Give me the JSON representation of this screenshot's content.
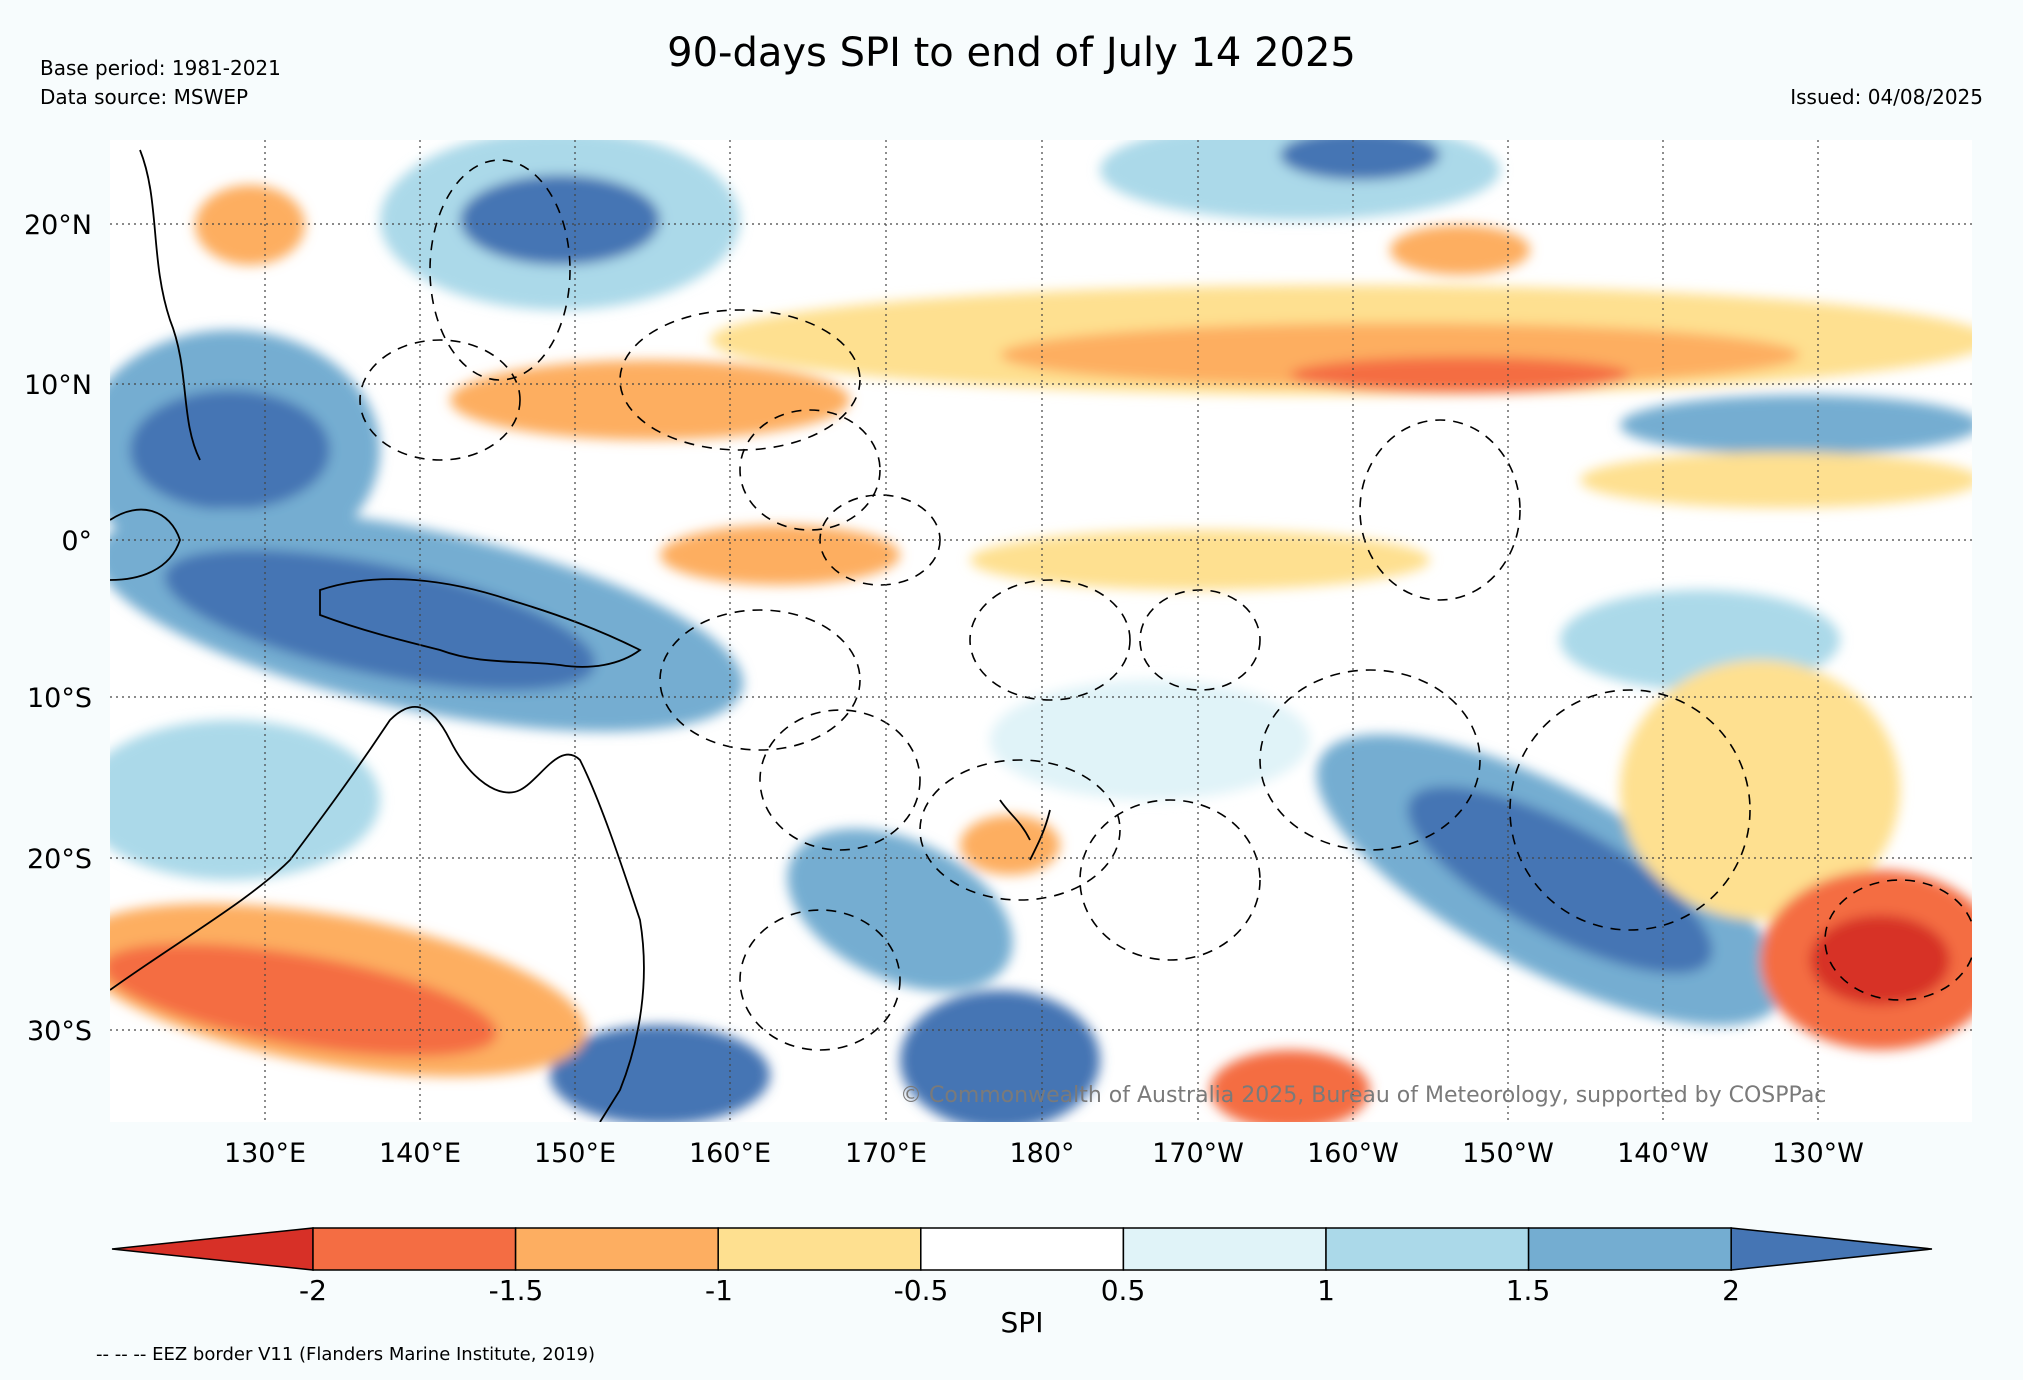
{
  "title": "90-days SPI to end of July 14 2025",
  "base_period": "Base period: 1981-2021",
  "data_source": "Data source: MSWEP",
  "issued": "Issued: 04/08/2025",
  "credit": "© Commonwealth of Australia 2025, Bureau of Meteorology, supported by COSPPac",
  "footnote": "-- -- -- EEZ border V11 (Flanders Marine Institute, 2019)",
  "lat_ticks": [
    "20°N",
    "10°N",
    "0°",
    "10°S",
    "20°S",
    "30°S"
  ],
  "lon_ticks": [
    "130°E",
    "140°E",
    "150°E",
    "160°E",
    "170°E",
    "180°",
    "170°W",
    "160°W",
    "150°W",
    "140°W",
    "130°W"
  ],
  "colorbar": {
    "label": "SPI",
    "tick_labels": [
      "-2",
      "-1.5",
      "-1",
      "-0.5",
      "0.5",
      "1",
      "1.5",
      "2"
    ],
    "colors": [
      "#d73027",
      "#f46d43",
      "#fdae61",
      "#fee090",
      "#ffffff",
      "#e0f3f8",
      "#abd9e9",
      "#74add1",
      "#4575b4"
    ]
  }
}
